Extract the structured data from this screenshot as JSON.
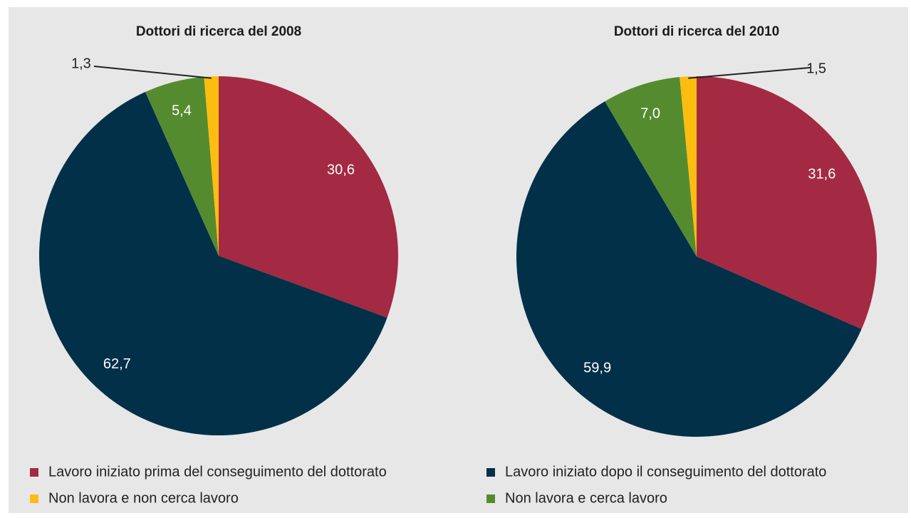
{
  "chart_data": {
    "type": "pie",
    "categories": [
      "Lavoro iniziato prima del conseguimento del dottorato",
      "Lavoro iniziato dopo il conseguimento del dottorato",
      "Non lavora e cerca lavoro",
      "Non lavora e non cerca lavoro"
    ],
    "colors": [
      "#a32a42",
      "#023049",
      "#558b2f",
      "#fdbd10"
    ],
    "series": [
      {
        "name": "Dottori di ricerca del 2008",
        "values": [
          30.6,
          62.7,
          5.4,
          1.3
        ],
        "value_labels": [
          "30,6",
          "62,7",
          "5,4",
          "1,3"
        ]
      },
      {
        "name": "Dottori di ricerca del 2010",
        "values": [
          31.6,
          59.9,
          7.0,
          1.5
        ],
        "value_labels": [
          "31,6",
          "59,9",
          "7,0",
          "1,5"
        ]
      }
    ]
  }
}
